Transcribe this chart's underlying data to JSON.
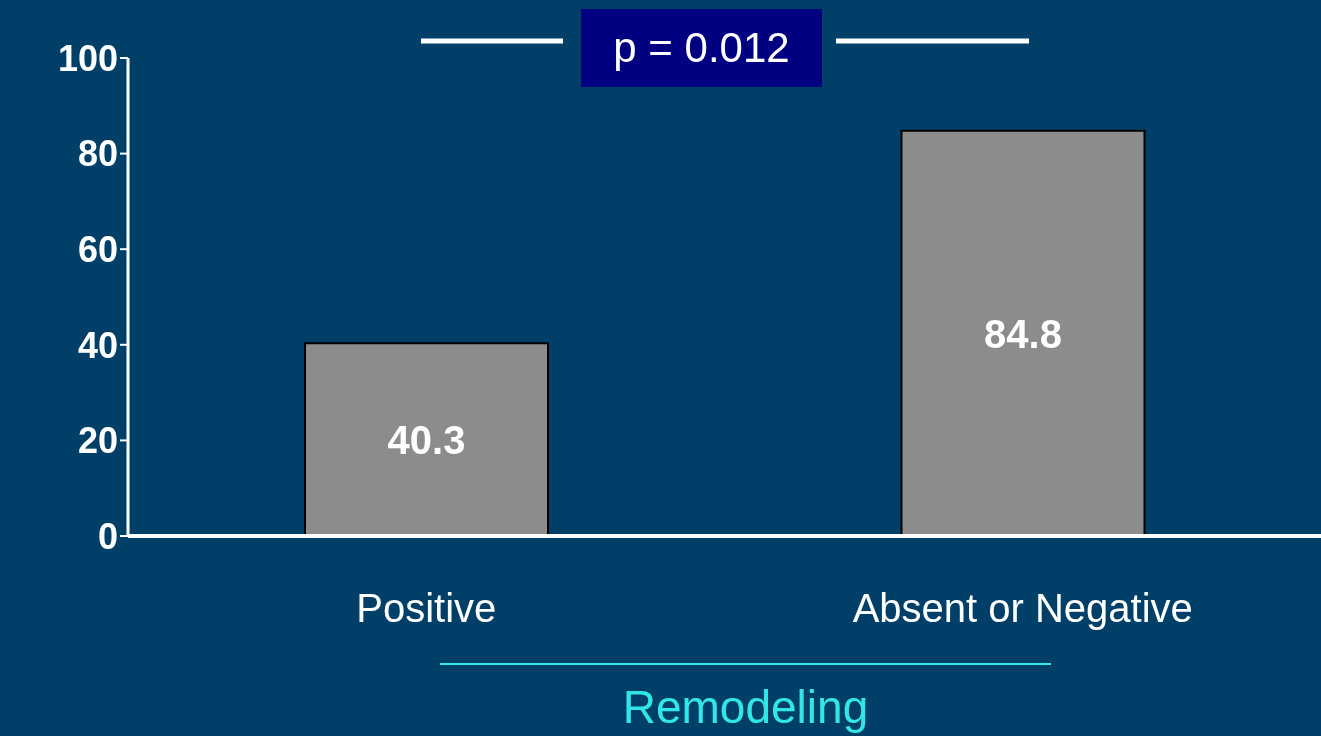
{
  "chart_data": {
    "type": "bar",
    "categories": [
      "Positive",
      "Absent or Negative"
    ],
    "values": [
      40.3,
      84.8
    ],
    "color": "#8c8c8c",
    "ylim": [
      0,
      100
    ],
    "yticks": [
      0,
      20,
      40,
      60,
      80,
      100
    ],
    "xlabel": "Remodeling",
    "data_labels": true,
    "annotations": [
      "p = 0.012"
    ]
  }
}
